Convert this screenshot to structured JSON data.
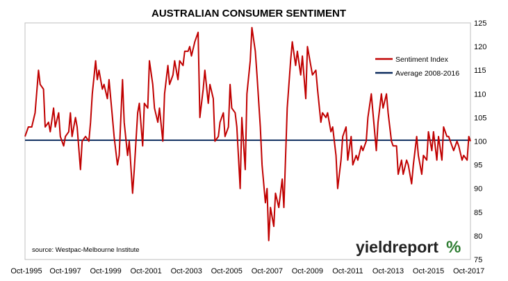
{
  "chart_data": {
    "type": "line",
    "title": "AUSTRALIAN CONSUMER SENTIMENT",
    "xlabel": "",
    "ylabel": "",
    "ylim": [
      75,
      125
    ],
    "y_ticks": [
      75,
      80,
      85,
      90,
      95,
      100,
      105,
      110,
      115,
      120,
      125
    ],
    "x_range": [
      "1995-10",
      "2017-11"
    ],
    "x_tick_labels": [
      "Oct-1995",
      "Oct-1997",
      "Oct-1999",
      "Oct-2001",
      "Oct-2003",
      "Oct-2005",
      "Oct-2007",
      "Oct-2009",
      "Oct-2011",
      "Oct-2013",
      "Oct-2015",
      "Oct-2017"
    ],
    "y_axis_side": "right",
    "grid": false,
    "legend_position": "top-right",
    "series": [
      {
        "name": "Sentiment Index",
        "color": "#c00000",
        "points": [
          [
            "1995-10",
            101
          ],
          [
            "1995-12",
            103
          ],
          [
            "1996-02",
            103
          ],
          [
            "1996-04",
            106
          ],
          [
            "1996-06",
            115
          ],
          [
            "1996-07",
            112
          ],
          [
            "1996-09",
            111
          ],
          [
            "1996-10",
            103
          ],
          [
            "1996-12",
            104
          ],
          [
            "1997-01",
            102
          ],
          [
            "1997-03",
            107
          ],
          [
            "1997-04",
            103
          ],
          [
            "1997-06",
            106
          ],
          [
            "1997-07",
            101
          ],
          [
            "1997-09",
            99
          ],
          [
            "1997-10",
            101
          ],
          [
            "1997-12",
            102
          ],
          [
            "1998-01",
            106
          ],
          [
            "1998-02",
            101
          ],
          [
            "1998-04",
            105
          ],
          [
            "1998-05",
            103
          ],
          [
            "1998-07",
            94
          ],
          [
            "1998-08",
            100
          ],
          [
            "1998-10",
            101
          ],
          [
            "1998-12",
            100
          ],
          [
            "1999-01",
            104
          ],
          [
            "1999-02",
            110
          ],
          [
            "1999-04",
            117
          ],
          [
            "1999-05",
            113
          ],
          [
            "1999-06",
            115
          ],
          [
            "1999-08",
            111
          ],
          [
            "1999-09",
            112
          ],
          [
            "1999-11",
            109
          ],
          [
            "1999-12",
            113
          ],
          [
            "2000-02",
            105
          ],
          [
            "2000-03",
            101
          ],
          [
            "2000-05",
            95
          ],
          [
            "2000-06",
            97
          ],
          [
            "2000-08",
            113
          ],
          [
            "2000-09",
            104
          ],
          [
            "2000-11",
            97
          ],
          [
            "2000-12",
            100
          ],
          [
            "2001-02",
            89
          ],
          [
            "2001-03",
            94
          ],
          [
            "2001-05",
            106
          ],
          [
            "2001-06",
            108
          ],
          [
            "2001-08",
            99
          ],
          [
            "2001-09",
            108
          ],
          [
            "2001-11",
            107
          ],
          [
            "2001-12",
            117
          ],
          [
            "2002-02",
            112
          ],
          [
            "2002-03",
            107
          ],
          [
            "2002-05",
            104
          ],
          [
            "2002-06",
            107
          ],
          [
            "2002-08",
            100
          ],
          [
            "2002-09",
            110
          ],
          [
            "2002-11",
            116
          ],
          [
            "2002-12",
            112
          ],
          [
            "2003-02",
            114
          ],
          [
            "2003-03",
            117
          ],
          [
            "2003-05",
            113
          ],
          [
            "2003-06",
            117
          ],
          [
            "2003-08",
            116
          ],
          [
            "2003-09",
            119
          ],
          [
            "2003-11",
            119
          ],
          [
            "2003-12",
            120
          ],
          [
            "2004-01",
            118
          ],
          [
            "2004-03",
            121
          ],
          [
            "2004-05",
            123
          ],
          [
            "2004-06",
            105
          ],
          [
            "2004-08",
            111
          ],
          [
            "2004-09",
            115
          ],
          [
            "2004-11",
            108
          ],
          [
            "2004-12",
            112
          ],
          [
            "2005-02",
            109
          ],
          [
            "2005-03",
            100
          ],
          [
            "2005-05",
            101
          ],
          [
            "2005-06",
            104
          ],
          [
            "2005-08",
            106
          ],
          [
            "2005-09",
            101
          ],
          [
            "2005-11",
            103
          ],
          [
            "2005-12",
            112
          ],
          [
            "2006-01",
            107
          ],
          [
            "2006-03",
            106
          ],
          [
            "2006-04",
            103
          ],
          [
            "2006-06",
            90
          ],
          [
            "2006-07",
            105
          ],
          [
            "2006-09",
            94
          ],
          [
            "2006-10",
            110
          ],
          [
            "2006-12",
            117
          ],
          [
            "2007-01",
            124
          ],
          [
            "2007-03",
            119
          ],
          [
            "2007-04",
            114
          ],
          [
            "2007-06",
            103
          ],
          [
            "2007-07",
            95
          ],
          [
            "2007-09",
            87
          ],
          [
            "2007-10",
            90
          ],
          [
            "2007-11",
            79
          ],
          [
            "2007-12",
            86
          ],
          [
            "2008-02",
            82
          ],
          [
            "2008-03",
            89
          ],
          [
            "2008-05",
            86
          ],
          [
            "2008-07",
            92
          ],
          [
            "2008-08",
            86
          ],
          [
            "2008-10",
            107
          ],
          [
            "2008-12",
            117
          ],
          [
            "2009-01",
            121
          ],
          [
            "2009-03",
            116
          ],
          [
            "2009-04",
            119
          ],
          [
            "2009-06",
            114
          ],
          [
            "2009-07",
            118
          ],
          [
            "2009-09",
            109
          ],
          [
            "2009-10",
            120
          ],
          [
            "2009-12",
            116
          ],
          [
            "2010-01",
            114
          ],
          [
            "2010-03",
            115
          ],
          [
            "2010-04",
            111
          ],
          [
            "2010-06",
            104
          ],
          [
            "2010-07",
            106
          ],
          [
            "2010-09",
            105
          ],
          [
            "2010-10",
            106
          ],
          [
            "2010-12",
            102
          ],
          [
            "2011-01",
            103
          ],
          [
            "2011-03",
            97
          ],
          [
            "2011-04",
            90
          ],
          [
            "2011-06",
            96
          ],
          [
            "2011-07",
            101
          ],
          [
            "2011-09",
            103
          ],
          [
            "2011-10",
            96
          ],
          [
            "2011-12",
            101
          ],
          [
            "2012-01",
            95
          ],
          [
            "2012-03",
            97
          ],
          [
            "2012-04",
            96
          ],
          [
            "2012-06",
            99
          ],
          [
            "2012-07",
            98
          ],
          [
            "2012-09",
            100
          ],
          [
            "2012-10",
            105
          ],
          [
            "2012-12",
            110
          ],
          [
            "2013-01",
            106
          ],
          [
            "2013-03",
            98
          ],
          [
            "2013-04",
            104
          ],
          [
            "2013-06",
            110
          ],
          [
            "2013-07",
            107
          ],
          [
            "2013-09",
            110
          ],
          [
            "2013-10",
            106
          ],
          [
            "2013-12",
            100
          ],
          [
            "2014-01",
            99
          ],
          [
            "2014-03",
            99
          ],
          [
            "2014-04",
            93
          ],
          [
            "2014-06",
            96
          ],
          [
            "2014-07",
            93
          ],
          [
            "2014-09",
            96
          ],
          [
            "2014-10",
            95
          ],
          [
            "2014-12",
            91
          ],
          [
            "2015-01",
            95
          ],
          [
            "2015-03",
            101
          ],
          [
            "2015-04",
            97
          ],
          [
            "2015-06",
            93
          ],
          [
            "2015-07",
            97
          ],
          [
            "2015-09",
            96
          ],
          [
            "2015-10",
            102
          ],
          [
            "2015-12",
            98
          ],
          [
            "2016-01",
            102
          ],
          [
            "2016-03",
            96
          ],
          [
            "2016-04",
            101
          ],
          [
            "2016-06",
            96
          ],
          [
            "2016-07",
            103
          ],
          [
            "2016-09",
            101
          ],
          [
            "2016-10",
            101
          ],
          [
            "2016-12",
            99
          ],
          [
            "2017-01",
            98
          ],
          [
            "2017-03",
            100
          ],
          [
            "2017-04",
            99
          ],
          [
            "2017-06",
            96
          ],
          [
            "2017-07",
            97
          ],
          [
            "2017-09",
            96
          ],
          [
            "2017-10",
            101
          ],
          [
            "2017-11",
            100
          ]
        ]
      },
      {
        "name": "Average 2008-2016",
        "color": "#0a2a5c",
        "constant": 100.2
      }
    ],
    "annotations": {
      "source": "source: Westpac-Melbourne Institute"
    }
  },
  "branding": {
    "logo_text": "yieldreport",
    "logo_symbol": "%"
  }
}
